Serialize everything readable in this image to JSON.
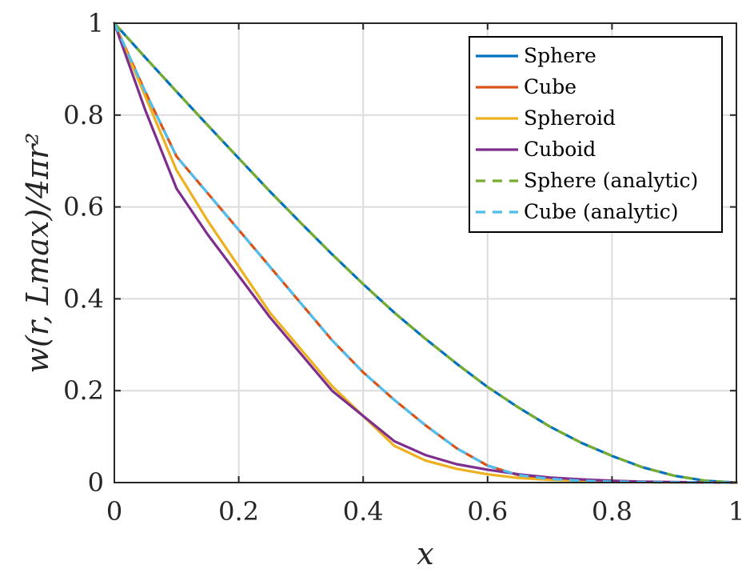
{
  "chart_data": {
    "type": "line",
    "title": "",
    "xlabel": "x",
    "ylabel": "w(r, Lmax)/4πr²",
    "xlim": [
      0,
      1
    ],
    "ylim": [
      0,
      1
    ],
    "xticks": [
      0,
      0.2,
      0.4,
      0.6,
      0.8,
      1
    ],
    "yticks": [
      0,
      0.2,
      0.4,
      0.6,
      0.8,
      1
    ],
    "xtick_labels": [
      "0",
      "0.2",
      "0.4",
      "0.6",
      "0.8",
      "1"
    ],
    "ytick_labels": [
      "0",
      "0.2",
      "0.4",
      "0.6",
      "0.8",
      "1"
    ],
    "grid": true,
    "legend_position": "top-right",
    "series": [
      {
        "name": "Sphere",
        "color": "#0072BD",
        "dash": "solid",
        "x": [
          0,
          0.05,
          0.1,
          0.15,
          0.2,
          0.25,
          0.3,
          0.35,
          0.4,
          0.45,
          0.5,
          0.55,
          0.6,
          0.65,
          0.7,
          0.75,
          0.8,
          0.85,
          0.9,
          0.95,
          1.0
        ],
        "y": [
          1.0,
          0.925,
          0.851,
          0.778,
          0.706,
          0.634,
          0.565,
          0.497,
          0.432,
          0.37,
          0.313,
          0.259,
          0.208,
          0.163,
          0.122,
          0.087,
          0.058,
          0.033,
          0.015,
          0.004,
          0.0
        ]
      },
      {
        "name": "Cube",
        "color": "#D95319",
        "dash": "solid",
        "x": [
          0,
          0.05,
          0.1,
          0.15,
          0.2,
          0.25,
          0.3,
          0.35,
          0.4,
          0.45,
          0.5,
          0.55,
          0.6,
          0.65,
          0.7,
          0.75,
          0.8,
          0.85,
          0.9,
          0.95,
          1.0
        ],
        "y": [
          1.0,
          0.85,
          0.71,
          0.63,
          0.55,
          0.47,
          0.39,
          0.31,
          0.24,
          0.18,
          0.125,
          0.075,
          0.037,
          0.016,
          0.008,
          0.004,
          0.002,
          0.001,
          0.0005,
          0.0002,
          0.0
        ]
      },
      {
        "name": "Spheroid",
        "color": "#EDB120",
        "dash": "solid",
        "x": [
          0,
          0.05,
          0.1,
          0.15,
          0.2,
          0.25,
          0.3,
          0.35,
          0.4,
          0.45,
          0.5,
          0.55,
          0.6,
          0.65,
          0.7,
          0.75,
          0.8,
          0.85,
          0.9,
          0.95,
          1.0
        ],
        "y": [
          1.0,
          0.84,
          0.68,
          0.57,
          0.47,
          0.37,
          0.29,
          0.21,
          0.145,
          0.08,
          0.048,
          0.03,
          0.018,
          0.01,
          0.006,
          0.004,
          0.002,
          0.001,
          0.0005,
          0.0002,
          0.0
        ]
      },
      {
        "name": "Cuboid",
        "color": "#7E2F8E",
        "dash": "solid",
        "x": [
          0,
          0.05,
          0.1,
          0.15,
          0.2,
          0.25,
          0.3,
          0.35,
          0.4,
          0.45,
          0.5,
          0.55,
          0.6,
          0.65,
          0.7,
          0.75,
          0.8,
          0.85,
          0.9,
          0.95,
          1.0
        ],
        "y": [
          1.0,
          0.81,
          0.64,
          0.54,
          0.45,
          0.36,
          0.28,
          0.2,
          0.145,
          0.09,
          0.06,
          0.04,
          0.028,
          0.018,
          0.011,
          0.007,
          0.004,
          0.002,
          0.001,
          0.0004,
          0.0
        ]
      },
      {
        "name": "Sphere (analytic)",
        "color": "#77AC30",
        "dash": "dashed",
        "x": [
          0,
          0.05,
          0.1,
          0.15,
          0.2,
          0.25,
          0.3,
          0.35,
          0.4,
          0.45,
          0.5,
          0.55,
          0.6,
          0.65,
          0.7,
          0.75,
          0.8,
          0.85,
          0.9,
          0.95,
          1.0
        ],
        "y": [
          1.0,
          0.925,
          0.851,
          0.778,
          0.706,
          0.634,
          0.565,
          0.497,
          0.432,
          0.37,
          0.313,
          0.259,
          0.208,
          0.163,
          0.122,
          0.087,
          0.058,
          0.033,
          0.015,
          0.004,
          0.0
        ]
      },
      {
        "name": "Cube (analytic)",
        "color": "#4DBEEE",
        "dash": "dashed",
        "x": [
          0,
          0.05,
          0.1,
          0.15,
          0.2,
          0.25,
          0.3,
          0.35,
          0.4,
          0.45,
          0.5,
          0.55,
          0.6,
          0.65,
          0.7,
          0.75,
          0.8,
          0.85,
          0.9,
          0.95,
          1.0
        ],
        "y": [
          1.0,
          0.85,
          0.71,
          0.63,
          0.55,
          0.47,
          0.39,
          0.31,
          0.24,
          0.18,
          0.125,
          0.075,
          0.037,
          0.016,
          0.008,
          0.004,
          0.002,
          0.001,
          0.0005,
          0.0002,
          0.0
        ]
      }
    ]
  }
}
